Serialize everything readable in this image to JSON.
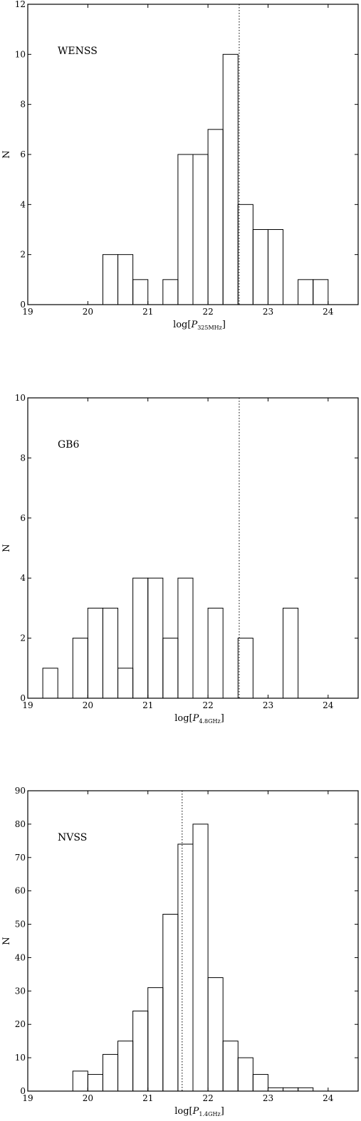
{
  "chart_data": [
    {
      "type": "bar",
      "name": "WENSS",
      "label": "WENSS",
      "xlabel": "log[P325MHz]",
      "xlabel_main": "log[",
      "xlabel_var": "P",
      "xlabel_sub": "325MHz",
      "xlabel_close": "]",
      "ylabel": "N",
      "xlim": [
        19,
        24.5
      ],
      "ylim": [
        0,
        12
      ],
      "xticks": [
        19,
        20,
        21,
        22,
        23,
        24
      ],
      "yticks": [
        0,
        2,
        4,
        6,
        8,
        10,
        12
      ],
      "vline": 22.52,
      "bin_width": 0.25,
      "bins": [
        {
          "x": 20.25,
          "value": 2
        },
        {
          "x": 20.5,
          "value": 2
        },
        {
          "x": 20.75,
          "value": 1
        },
        {
          "x": 21.25,
          "value": 1
        },
        {
          "x": 21.5,
          "value": 6
        },
        {
          "x": 21.75,
          "value": 6
        },
        {
          "x": 22.0,
          "value": 7
        },
        {
          "x": 22.25,
          "value": 10
        },
        {
          "x": 22.5,
          "value": 4
        },
        {
          "x": 22.75,
          "value": 3
        },
        {
          "x": 23.0,
          "value": 3
        },
        {
          "x": 23.5,
          "value": 1
        },
        {
          "x": 23.75,
          "value": 1
        }
      ]
    },
    {
      "type": "bar",
      "name": "GB6",
      "label": "GB6",
      "xlabel": "log[P4.8GHz]",
      "xlabel_main": "log[",
      "xlabel_var": "P",
      "xlabel_sub": "4.8GHz",
      "xlabel_close": "]",
      "ylabel": "N",
      "xlim": [
        19,
        24.5
      ],
      "ylim": [
        0,
        10
      ],
      "xticks": [
        19,
        20,
        21,
        22,
        23,
        24
      ],
      "yticks": [
        0,
        2,
        4,
        6,
        8,
        10
      ],
      "vline": 22.52,
      "bin_width": 0.25,
      "bins": [
        {
          "x": 19.25,
          "value": 1
        },
        {
          "x": 19.75,
          "value": 2
        },
        {
          "x": 20.0,
          "value": 3
        },
        {
          "x": 20.25,
          "value": 3
        },
        {
          "x": 20.5,
          "value": 1
        },
        {
          "x": 20.75,
          "value": 4
        },
        {
          "x": 21.0,
          "value": 4
        },
        {
          "x": 21.25,
          "value": 2
        },
        {
          "x": 21.5,
          "value": 4
        },
        {
          "x": 22.0,
          "value": 3
        },
        {
          "x": 22.5,
          "value": 2
        },
        {
          "x": 23.25,
          "value": 3
        }
      ]
    },
    {
      "type": "bar",
      "name": "NVSS",
      "label": "NVSS",
      "xlabel": "log[P1.4GHz]",
      "xlabel_main": "log[",
      "xlabel_var": "P",
      "xlabel_sub": "1.4GHz",
      "xlabel_close": "]",
      "ylabel": "N",
      "xlim": [
        19,
        24.5
      ],
      "ylim": [
        0,
        90
      ],
      "xticks": [
        19,
        20,
        21,
        22,
        23,
        24
      ],
      "yticks": [
        0,
        10,
        20,
        30,
        40,
        50,
        60,
        70,
        80,
        90
      ],
      "vline": 21.57,
      "bin_width": 0.25,
      "bins": [
        {
          "x": 19.75,
          "value": 6
        },
        {
          "x": 20.0,
          "value": 5
        },
        {
          "x": 20.25,
          "value": 11
        },
        {
          "x": 20.5,
          "value": 15
        },
        {
          "x": 20.75,
          "value": 24
        },
        {
          "x": 21.0,
          "value": 31
        },
        {
          "x": 21.25,
          "value": 53
        },
        {
          "x": 21.5,
          "value": 74
        },
        {
          "x": 21.75,
          "value": 80
        },
        {
          "x": 22.0,
          "value": 34
        },
        {
          "x": 22.25,
          "value": 15
        },
        {
          "x": 22.5,
          "value": 10
        },
        {
          "x": 22.75,
          "value": 5
        },
        {
          "x": 23.0,
          "value": 1
        },
        {
          "x": 23.25,
          "value": 1
        },
        {
          "x": 23.5,
          "value": 1
        }
      ]
    }
  ]
}
